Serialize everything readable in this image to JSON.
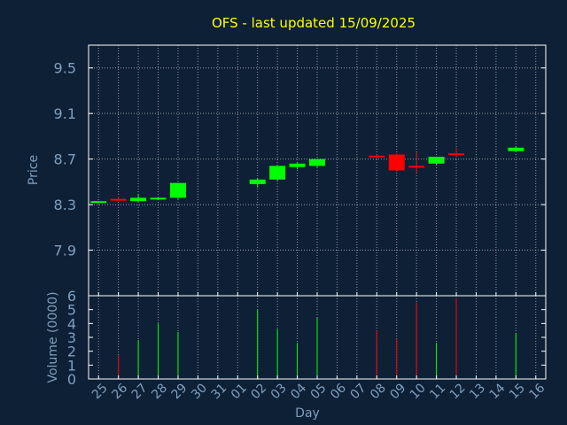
{
  "chart_data": {
    "type": "candlestick",
    "title": "OFS - last updated 15/09/2025",
    "xlabel": "Day",
    "price_ylabel": "Price",
    "volume_ylabel": "Volume (0000)",
    "x_ticks": [
      "25",
      "26",
      "27",
      "28",
      "29",
      "30",
      "31",
      "01",
      "02",
      "03",
      "04",
      "05",
      "06",
      "07",
      "08",
      "09",
      "10",
      "11",
      "12",
      "13",
      "14",
      "15",
      "16"
    ],
    "price_ylim": [
      7.5,
      9.7
    ],
    "price_ticks": [
      "7.9",
      "8.3",
      "8.7",
      "9.1",
      "9.5"
    ],
    "volume_ylim": [
      0,
      6
    ],
    "volume_ticks": [
      "0",
      "1",
      "2",
      "3",
      "4",
      "5",
      "6"
    ],
    "grid": true,
    "colors": {
      "up": "#00ff00",
      "down": "#ff0000",
      "title": "#ffff00",
      "axis_text": "#7f9fc0",
      "background": "#0e2035"
    },
    "candles": [
      {
        "day": "25",
        "open": 8.32,
        "high": 8.33,
        "low": 8.31,
        "close": 8.33,
        "volume": 0.0
      },
      {
        "day": "26",
        "open": 8.35,
        "high": 8.37,
        "low": 8.33,
        "close": 8.34,
        "volume": 1.7
      },
      {
        "day": "27",
        "open": 8.33,
        "high": 8.39,
        "low": 8.32,
        "close": 8.36,
        "volume": 2.8
      },
      {
        "day": "28",
        "open": 8.35,
        "high": 8.36,
        "low": 8.34,
        "close": 8.36,
        "volume": 4.0
      },
      {
        "day": "29",
        "open": 8.36,
        "high": 8.49,
        "low": 8.35,
        "close": 8.49,
        "volume": 3.4
      },
      {
        "day": "02",
        "open": 8.48,
        "high": 8.53,
        "low": 8.45,
        "close": 8.52,
        "volume": 5.0
      },
      {
        "day": "03",
        "open": 8.52,
        "high": 8.64,
        "low": 8.51,
        "close": 8.64,
        "volume": 3.6
      },
      {
        "day": "04",
        "open": 8.63,
        "high": 8.67,
        "low": 8.61,
        "close": 8.66,
        "volume": 2.6
      },
      {
        "day": "05",
        "open": 8.64,
        "high": 8.7,
        "low": 8.63,
        "close": 8.7,
        "volume": 4.4
      },
      {
        "day": "08",
        "open": 8.73,
        "high": 8.74,
        "low": 8.7,
        "close": 8.72,
        "volume": 3.5
      },
      {
        "day": "09",
        "open": 8.74,
        "high": 8.75,
        "low": 8.59,
        "close": 8.6,
        "volume": 2.9
      },
      {
        "day": "10",
        "open": 8.64,
        "high": 8.76,
        "low": 8.58,
        "close": 8.63,
        "volume": 5.5
      },
      {
        "day": "11",
        "open": 8.66,
        "high": 8.72,
        "low": 8.65,
        "close": 8.72,
        "volume": 2.6
      },
      {
        "day": "12",
        "open": 8.75,
        "high": 8.8,
        "low": 8.71,
        "close": 8.74,
        "volume": 5.8
      },
      {
        "day": "15",
        "open": 8.77,
        "high": 8.81,
        "low": 8.76,
        "close": 8.8,
        "volume": 3.3
      }
    ]
  }
}
